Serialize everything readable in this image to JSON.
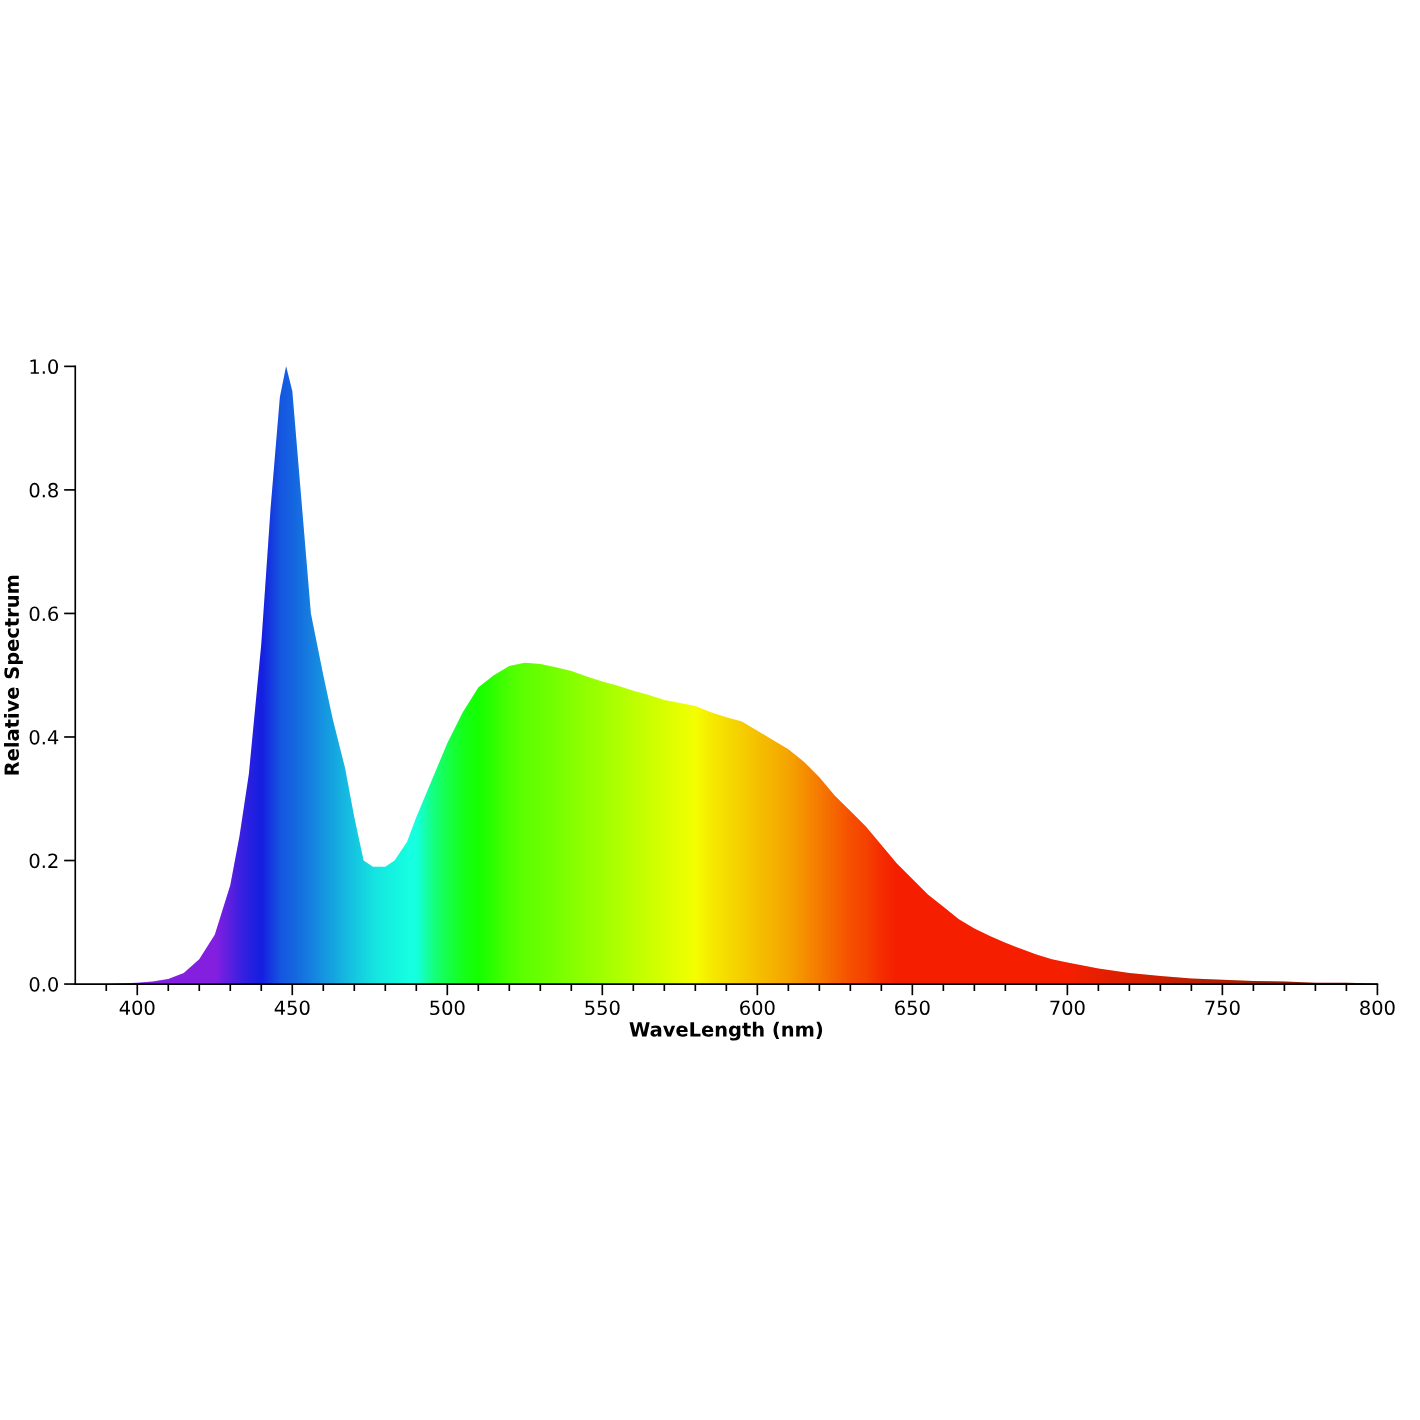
{
  "chart_data": {
    "type": "area",
    "xlabel": "WaveLength (nm)",
    "ylabel": "Relative Spectrum",
    "x": [
      380,
      390,
      400,
      405,
      410,
      415,
      420,
      425,
      430,
      433,
      436,
      440,
      443,
      446,
      448,
      450,
      453,
      456,
      460,
      463,
      467,
      470,
      473,
      476,
      480,
      483,
      487,
      490,
      495,
      500,
      505,
      510,
      515,
      520,
      525,
      530,
      535,
      540,
      545,
      550,
      555,
      560,
      565,
      570,
      575,
      580,
      585,
      590,
      595,
      600,
      605,
      610,
      615,
      620,
      625,
      630,
      635,
      640,
      645,
      650,
      655,
      660,
      665,
      670,
      675,
      680,
      685,
      690,
      695,
      700,
      710,
      720,
      730,
      740,
      750,
      760,
      770,
      780,
      790,
      800
    ],
    "series": [
      {
        "values": [
          0,
          0,
          0.002,
          0.004,
          0.008,
          0.018,
          0.04,
          0.08,
          0.16,
          0.24,
          0.34,
          0.55,
          0.77,
          0.95,
          1.0,
          0.96,
          0.78,
          0.6,
          0.5,
          0.43,
          0.35,
          0.27,
          0.2,
          0.19,
          0.19,
          0.2,
          0.23,
          0.27,
          0.33,
          0.39,
          0.44,
          0.48,
          0.5,
          0.515,
          0.52,
          0.518,
          0.513,
          0.507,
          0.498,
          0.49,
          0.483,
          0.475,
          0.468,
          0.46,
          0.455,
          0.45,
          0.44,
          0.432,
          0.425,
          0.41,
          0.395,
          0.38,
          0.36,
          0.335,
          0.305,
          0.28,
          0.255,
          0.225,
          0.195,
          0.17,
          0.145,
          0.125,
          0.105,
          0.09,
          0.078,
          0.067,
          0.057,
          0.048,
          0.04,
          0.035,
          0.025,
          0.018,
          0.013,
          0.009,
          0.007,
          0.005,
          0.004,
          0.002,
          0.002,
          0.001
        ],
        "colors": [
          "#8000ff",
          "#8000ff",
          "#8000ff",
          "#8000ff",
          "#8000ff",
          "#8000ff",
          "#8000ff",
          "#8000ff",
          "#5000ff",
          "#3000ff",
          "#1800ff",
          "#0000ff",
          "#0020ff",
          "#0040ff",
          "#0048ff",
          "#0050ff",
          "#0060ff",
          "#0070ff",
          "#0088ff",
          "#0098ff",
          "#00b0ff",
          "#00c0ff",
          "#00d0ff",
          "#00e0ff",
          "#00ecff",
          "#00f4ff",
          "#00ffff",
          "#00ffff",
          "#00ff99",
          "#00ff55",
          "#00ff20",
          "#00ff00",
          "#20ff00",
          "#40ff00",
          "#55ff00",
          "#60ff00",
          "#70ff00",
          "#80ff00",
          "#90ff00",
          "#a0ff00",
          "#b0ff00",
          "#c0ff00",
          "#d0ff00",
          "#e0ff00",
          "#f0ff00",
          "#ffff00",
          "#ffe800",
          "#ffd800",
          "#ffc800",
          "#ffb800",
          "#ffa800",
          "#ff9800",
          "#ff8000",
          "#ff6800",
          "#ff5000",
          "#ff3800",
          "#ff2800",
          "#ff1000",
          "#ff0000",
          "#ff0000",
          "#ff0000",
          "#ff0000",
          "#ff0000",
          "#ff0000",
          "#ff0000",
          "#ff0000",
          "#ff0000",
          "#ff0000",
          "#ff0000",
          "#ff0000",
          "#f00000",
          "#e00000",
          "#d00000",
          "#c00000",
          "#b00000",
          "#a00000",
          "#900000",
          "#800000",
          "#800000",
          "#800000"
        ]
      }
    ],
    "xlim": [
      380,
      800
    ],
    "xticks": [
      {
        "value": 390,
        "label": null
      },
      400,
      {
        "value": 410,
        "label": null
      },
      {
        "value": 420,
        "label": null
      },
      {
        "value": 430,
        "label": null
      },
      {
        "value": 440,
        "label": null
      },
      450,
      {
        "value": 460,
        "label": null
      },
      {
        "value": 470,
        "label": null
      },
      {
        "value": 480,
        "label": null
      },
      {
        "value": 490,
        "label": null
      },
      500,
      {
        "value": 510,
        "label": null
      },
      {
        "value": 520,
        "label": null
      },
      {
        "value": 530,
        "label": null
      },
      {
        "value": 540,
        "label": null
      },
      550,
      {
        "value": 560,
        "label": null
      },
      {
        "value": 570,
        "label": null
      },
      {
        "value": 580,
        "label": null
      },
      {
        "value": 590,
        "label": null
      },
      600,
      {
        "value": 610,
        "label": null
      },
      {
        "value": 620,
        "label": null
      },
      {
        "value": 630,
        "label": null
      },
      {
        "value": 640,
        "label": null
      },
      650,
      {
        "value": 660,
        "label": null
      },
      {
        "value": 670,
        "label": null
      },
      {
        "value": 680,
        "label": null
      },
      {
        "value": 690,
        "label": null
      },
      700,
      {
        "value": 710,
        "label": null
      },
      {
        "value": 720,
        "label": null
      },
      {
        "value": 730,
        "label": null
      },
      {
        "value": 740,
        "label": null
      },
      750,
      {
        "value": 760,
        "label": null
      },
      {
        "value": 770,
        "label": null
      },
      {
        "value": 780,
        "label": null
      },
      {
        "value": 790,
        "label": null
      },
      800
    ],
    "ylim": [
      0,
      1.0
    ],
    "yticks": [
      {
        "value": 0,
        "label": "0.0"
      },
      {
        "value": 0.2,
        "label": "0.2"
      },
      {
        "value": 0.4,
        "label": "0.4"
      },
      {
        "value": 0.6,
        "label": "0.6"
      },
      {
        "value": 0.8,
        "label": "0.8"
      },
      {
        "value": 1.0,
        "label": "1.0"
      }
    ],
    "grid": false,
    "legend": false
  }
}
